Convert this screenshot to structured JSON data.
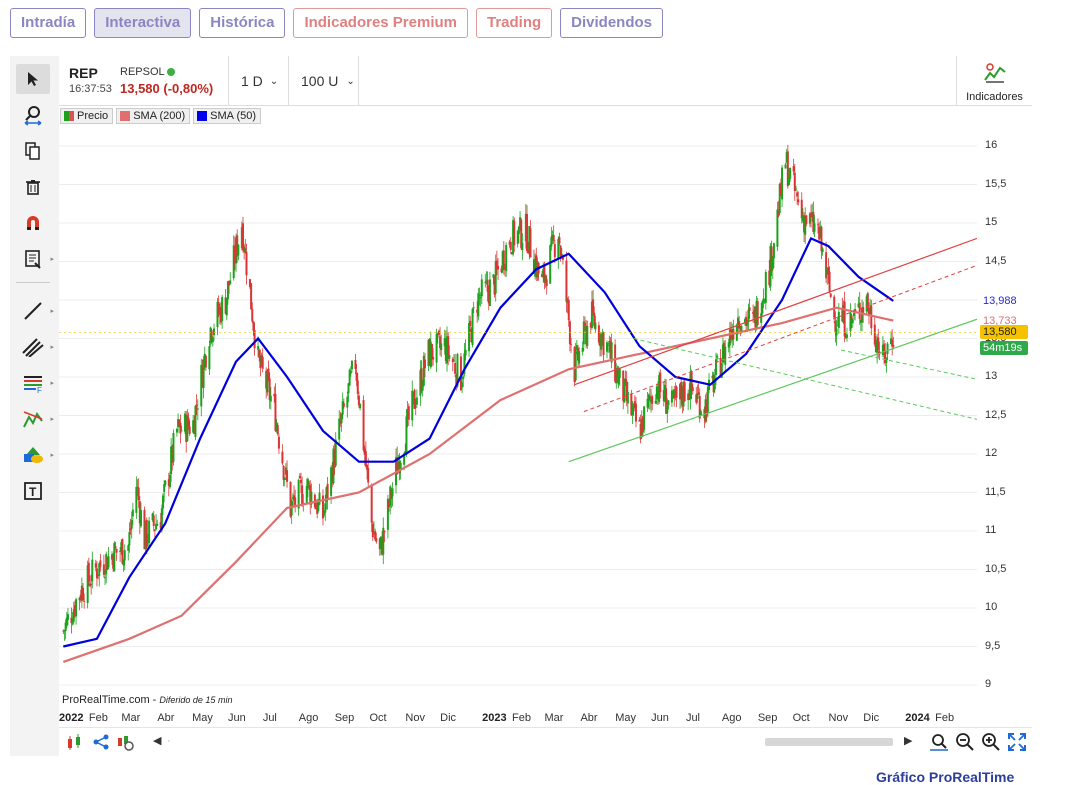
{
  "tabs": [
    {
      "label": "Intradía",
      "active": false
    },
    {
      "label": "Interactiva",
      "active": true
    },
    {
      "label": "Histórica",
      "active": false
    },
    {
      "label": "Indicadores Premium",
      "active": false
    },
    {
      "label": "Trading",
      "active": false
    },
    {
      "label": "Dividendos",
      "active": false
    }
  ],
  "header": {
    "symbol": "REP",
    "time": "16:37:53",
    "name": "REPSOL",
    "price": "13,580 (-0,80%)",
    "interval": "1 D",
    "units": "100 U",
    "indicators_label": "Indicadores"
  },
  "legend": [
    {
      "label": "Precio",
      "color": "#1aa31a"
    },
    {
      "label": "SMA (200)",
      "color": "#e07070"
    },
    {
      "label": "SMA (50)",
      "color": "#0000ee"
    }
  ],
  "watermark": {
    "brand": "ProRealTime.com",
    "note": "Diferido de 15 min"
  },
  "y_ticks": [
    "16",
    "15,5",
    "15",
    "14,5",
    "14",
    "13,5",
    "13",
    "12,5",
    "12",
    "11,5",
    "11",
    "10,5",
    "10",
    "9,5",
    "9"
  ],
  "y_tags": [
    {
      "label": "13,988",
      "color": "#2a2acc",
      "bg": "#ffffff"
    },
    {
      "label": "13,733",
      "color": "#e07070",
      "bg": "#ffffff"
    },
    {
      "label": "13,580",
      "color": "#222222",
      "bg": "#f5c200"
    },
    {
      "label": "54m19s",
      "color": "#ffffff",
      "bg": "#2fa84a"
    }
  ],
  "x_ticks": [
    {
      "label": "2022",
      "bold": true
    },
    {
      "label": "Feb"
    },
    {
      "label": "Mar"
    },
    {
      "label": "Abr"
    },
    {
      "label": "May"
    },
    {
      "label": "Jun"
    },
    {
      "label": "Jul"
    },
    {
      "label": "Ago"
    },
    {
      "label": "Sep"
    },
    {
      "label": "Oct"
    },
    {
      "label": "Nov"
    },
    {
      "label": "Dic"
    },
    {
      "label": "2023",
      "bold": true
    },
    {
      "label": "Feb"
    },
    {
      "label": "Mar"
    },
    {
      "label": "Abr"
    },
    {
      "label": "May"
    },
    {
      "label": "Jun"
    },
    {
      "label": "Jul"
    },
    {
      "label": "Ago"
    },
    {
      "label": "Sep"
    },
    {
      "label": "Oct"
    },
    {
      "label": "Nov"
    },
    {
      "label": "Dic"
    },
    {
      "label": "2024",
      "bold": true
    },
    {
      "label": "Feb"
    }
  ],
  "footer_link": "Gráfico ProRealTime",
  "chart_data": {
    "type": "line",
    "ylim": [
      8.8,
      16.4
    ],
    "sma50_last": 13.988,
    "sma200_last": 13.733,
    "last_price": 13.58,
    "price": [
      [
        "2022-01-03",
        9.7
      ],
      [
        "2022-01-17",
        10.2
      ],
      [
        "2022-01-31",
        10.5
      ],
      [
        "2022-02-14",
        10.7
      ],
      [
        "2022-02-28",
        10.8
      ],
      [
        "2022-03-07",
        11.6
      ],
      [
        "2022-03-14",
        10.9
      ],
      [
        "2022-03-28",
        11.2
      ],
      [
        "2022-04-11",
        12.3
      ],
      [
        "2022-04-25",
        12.4
      ],
      [
        "2022-05-09",
        13.6
      ],
      [
        "2022-05-23",
        14.0
      ],
      [
        "2022-06-06",
        15.0
      ],
      [
        "2022-06-20",
        13.2
      ],
      [
        "2022-07-04",
        12.6
      ],
      [
        "2022-07-18",
        11.3
      ],
      [
        "2022-08-01",
        11.6
      ],
      [
        "2022-08-15",
        11.2
      ],
      [
        "2022-08-29",
        12.3
      ],
      [
        "2022-09-12",
        13.2
      ],
      [
        "2022-09-26",
        11.1
      ],
      [
        "2022-10-03",
        10.7
      ],
      [
        "2022-10-17",
        11.8
      ],
      [
        "2022-10-31",
        12.6
      ],
      [
        "2022-11-14",
        13.3
      ],
      [
        "2022-11-28",
        13.4
      ],
      [
        "2022-12-12",
        13.0
      ],
      [
        "2022-12-26",
        14.0
      ],
      [
        "2023-01-09",
        14.2
      ],
      [
        "2023-01-23",
        14.8
      ],
      [
        "2023-02-06",
        14.9
      ],
      [
        "2023-02-20",
        14.2
      ],
      [
        "2023-03-06",
        14.9
      ],
      [
        "2023-03-20",
        13.1
      ],
      [
        "2023-04-03",
        13.8
      ],
      [
        "2023-04-17",
        13.4
      ],
      [
        "2023-05-01",
        12.8
      ],
      [
        "2023-05-15",
        12.3
      ],
      [
        "2023-05-29",
        12.9
      ],
      [
        "2023-06-12",
        12.6
      ],
      [
        "2023-06-26",
        12.9
      ],
      [
        "2023-07-10",
        12.6
      ],
      [
        "2023-07-24",
        13.2
      ],
      [
        "2023-08-07",
        13.8
      ],
      [
        "2023-08-21",
        13.7
      ],
      [
        "2023-09-04",
        14.4
      ],
      [
        "2023-09-18",
        15.8
      ],
      [
        "2023-10-02",
        15.1
      ],
      [
        "2023-10-16",
        14.9
      ],
      [
        "2023-10-30",
        13.8
      ],
      [
        "2023-11-13",
        13.7
      ],
      [
        "2023-11-27",
        14.0
      ],
      [
        "2023-12-11",
        13.2
      ],
      [
        "2023-12-20",
        13.58
      ]
    ],
    "sma50": [
      [
        "2022-01-03",
        9.5
      ],
      [
        "2022-02-01",
        9.6
      ],
      [
        "2022-03-01",
        10.4
      ],
      [
        "2022-04-01",
        11.1
      ],
      [
        "2022-05-01",
        12.2
      ],
      [
        "2022-06-01",
        13.2
      ],
      [
        "2022-06-20",
        13.5
      ],
      [
        "2022-07-15",
        13.0
      ],
      [
        "2022-08-15",
        12.3
      ],
      [
        "2022-09-15",
        11.9
      ],
      [
        "2022-10-15",
        11.9
      ],
      [
        "2022-11-15",
        12.2
      ],
      [
        "2022-12-15",
        13.1
      ],
      [
        "2023-01-15",
        13.9
      ],
      [
        "2023-02-15",
        14.4
      ],
      [
        "2023-03-15",
        14.6
      ],
      [
        "2023-04-15",
        14.1
      ],
      [
        "2023-05-15",
        13.4
      ],
      [
        "2023-06-15",
        13.0
      ],
      [
        "2023-07-15",
        12.9
      ],
      [
        "2023-08-15",
        13.3
      ],
      [
        "2023-09-15",
        14.0
      ],
      [
        "2023-10-10",
        14.8
      ],
      [
        "2023-10-25",
        14.7
      ],
      [
        "2023-11-20",
        14.3
      ],
      [
        "2023-12-20",
        13.988
      ]
    ],
    "sma200": [
      [
        "2022-01-03",
        9.3
      ],
      [
        "2022-03-01",
        9.6
      ],
      [
        "2022-04-15",
        9.9
      ],
      [
        "2022-06-01",
        10.6
      ],
      [
        "2022-07-15",
        11.3
      ],
      [
        "2022-09-15",
        11.5
      ],
      [
        "2022-11-15",
        12.0
      ],
      [
        "2023-01-15",
        12.7
      ],
      [
        "2023-03-15",
        13.1
      ],
      [
        "2023-05-15",
        13.3
      ],
      [
        "2023-07-15",
        13.5
      ],
      [
        "2023-09-15",
        13.7
      ],
      [
        "2023-11-01",
        13.9
      ],
      [
        "2023-12-20",
        13.733
      ]
    ]
  }
}
